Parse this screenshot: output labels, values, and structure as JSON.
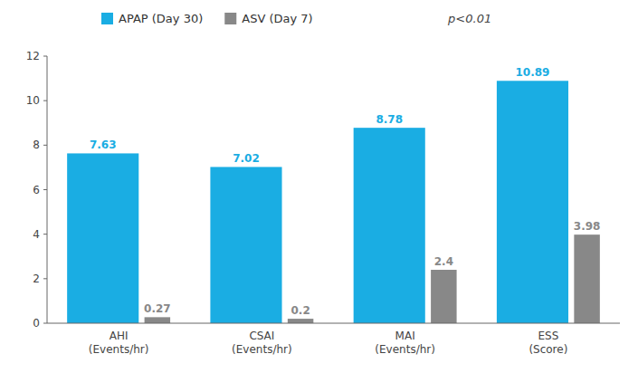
{
  "chart_data": {
    "type": "bar",
    "categories": [
      "AHI\n(Events/hr)",
      "CSAI\n(Events/hr)",
      "MAI\n(Events/hr)",
      "ESS\n(Score)"
    ],
    "series": [
      {
        "name": "APAP (Day 30)",
        "color": "#1AADE3",
        "values": [
          7.63,
          7.02,
          8.78,
          10.89
        ]
      },
      {
        "name": "ASV (Day 7)",
        "color": "#888888",
        "values": [
          0.27,
          0.2,
          2.4,
          3.98
        ]
      }
    ],
    "annotations": [
      "p<0.01"
    ],
    "ylim": [
      0,
      12
    ],
    "yticks": [
      0,
      2,
      4,
      6,
      8,
      10,
      12
    ],
    "grid": false,
    "legend": "top",
    "data_labels": true
  }
}
